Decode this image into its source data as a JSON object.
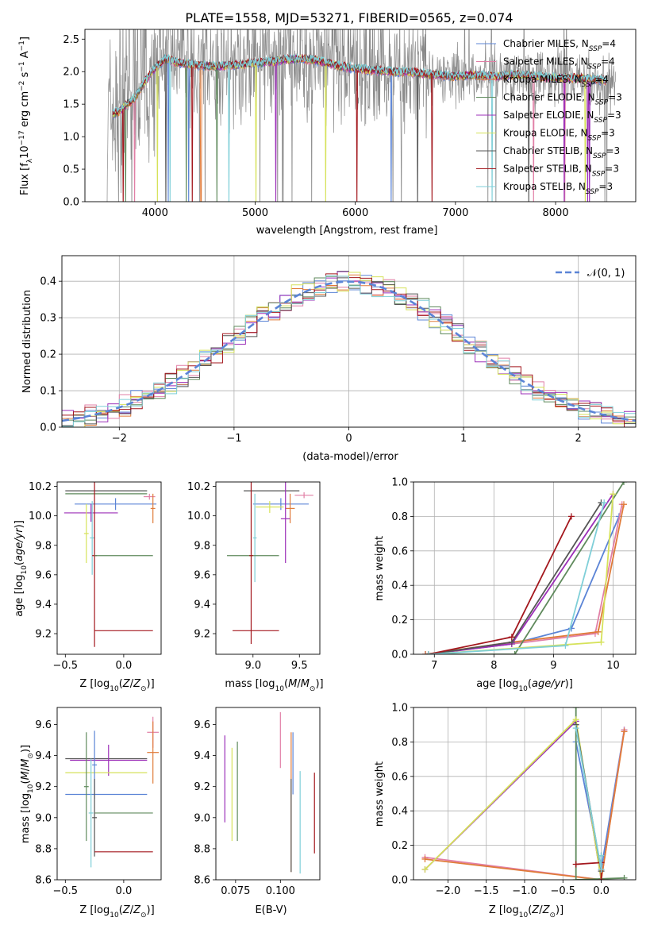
{
  "title": "PLATE=1558, MJD=53271, FIBERID=0565, z=0.074",
  "colors": {
    "chabrier_miles": "#5b84d6",
    "salpeter_miles": "#e17fa6",
    "kroupa_miles": "#e07b3a",
    "chabrier_elodie": "#5f8a5c",
    "salpeter_elodie": "#9c2fb8",
    "kroupa_elodie": "#d6e25a",
    "chabrier_stelib": "#555555",
    "salpeter_stelib": "#a3171d",
    "kroupa_stelib": "#7fcfd8",
    "gaussian": "#5b84d6",
    "grid": "#b0b0b0"
  },
  "chart_data": [
    {
      "id": "spectrum",
      "type": "line",
      "title": "PLATE=1558, MJD=53271, FIBERID=0565, z=0.074",
      "xlabel": "wavelength [Angstrom, rest frame]",
      "ylabel_parts": [
        "Flux [f",
        "λ",
        "10",
        "−17",
        " erg cm",
        "−2",
        " s",
        "−1",
        " A",
        "−1",
        "]"
      ],
      "xlim": [
        3300,
        8800
      ],
      "ylim": [
        0,
        2.65
      ],
      "xticks": [
        "4000",
        "5000",
        "6000",
        "7000",
        "8000"
      ],
      "yticks": [
        "0.0",
        "0.5",
        "1.0",
        "1.5",
        "2.0",
        "2.5"
      ],
      "grid": false,
      "legend_position": "top-right",
      "continuum_x": [
        3520,
        3650,
        3800,
        3900,
        4000,
        4100,
        4200,
        4400,
        4600,
        4800,
        5000,
        5200,
        5400,
        5600,
        5800,
        6000,
        6200,
        6400,
        6600,
        6800,
        7000,
        7200,
        7400,
        7600,
        7800,
        8000,
        8200,
        8400,
        8600
      ],
      "continuum_y": [
        1.3,
        1.4,
        1.6,
        1.85,
        2.05,
        2.2,
        2.15,
        2.1,
        2.08,
        2.1,
        2.13,
        2.16,
        2.2,
        2.18,
        2.1,
        2.05,
        2.02,
        2.0,
        1.98,
        1.95,
        1.93,
        1.95,
        1.93,
        1.95,
        1.93,
        1.9,
        1.9,
        1.88,
        1.85
      ],
      "legend": [
        {
          "name": "Chabrier MILES, ",
          "sub": "N",
          "subsc": "SSP",
          "suffix": "=4",
          "color": "#5b84d6"
        },
        {
          "name": "Salpeter MILES, ",
          "sub": "N",
          "subsc": "SSP",
          "suffix": "=4",
          "color": "#e17fa6"
        },
        {
          "name": "Kroupa MILES, ",
          "sub": "N",
          "subsc": "SSP",
          "suffix": "=4",
          "color": "#e07b3a"
        },
        {
          "name": "Chabrier ELODIE, ",
          "sub": "N",
          "subsc": "SSP",
          "suffix": "=3",
          "color": "#5f8a5c"
        },
        {
          "name": "Salpeter ELODIE, ",
          "sub": "N",
          "subsc": "SSP",
          "suffix": "=3",
          "color": "#9c2fb8"
        },
        {
          "name": "Kroupa ELODIE, ",
          "sub": "N",
          "subsc": "SSP",
          "suffix": "=3",
          "color": "#d6e25a"
        },
        {
          "name": "Chabrier STELIB, ",
          "sub": "N",
          "subsc": "SSP",
          "suffix": "=3",
          "color": "#555555"
        },
        {
          "name": "Salpeter STELIB, ",
          "sub": "N",
          "subsc": "SSP",
          "suffix": "=3",
          "color": "#a3171d"
        },
        {
          "name": "Kroupa STELIB, ",
          "sub": "N",
          "subsc": "SSP",
          "suffix": "=3",
          "color": "#7fcfd8"
        }
      ]
    },
    {
      "id": "residuals",
      "type": "histogram",
      "xlabel": "(data-model)/error",
      "ylabel": "Normed distribution",
      "xlim": [
        -2.5,
        2.5
      ],
      "ylim": [
        0,
        0.47
      ],
      "xticks": [
        "−2",
        "−1",
        "0",
        "1",
        "2"
      ],
      "yticks": [
        "0.0",
        "0.1",
        "0.2",
        "0.3",
        "0.4"
      ],
      "grid": true,
      "legend": [
        {
          "name": "N(0, 1)",
          "style": "dashed"
        }
      ],
      "bin_width": 0.1,
      "gaussian_mean": 0,
      "gaussian_sigma": 1
    },
    {
      "id": "age-vs-Z",
      "type": "errorbar",
      "xlabel": "Z [log10(Z/Z⊙)]",
      "ylabel": "age  [log10(age/yr)]",
      "xlim": [
        -0.57,
        0.32
      ],
      "ylim": [
        9.06,
        10.23
      ],
      "xticks": [
        -0.5,
        0.0
      ],
      "yticks": [
        9.2,
        9.4,
        9.6,
        9.8,
        10.0,
        10.2
      ],
      "points": [
        {
          "x": -0.15,
          "y": 10.17,
          "xerr": 0.35,
          "yerr": 0.0,
          "color": "#555555"
        },
        {
          "x": -0.15,
          "y": 10.15,
          "xerr": 0.35,
          "yerr": 0.0,
          "color": "#5f8a5c"
        },
        {
          "x": 0.22,
          "y": 10.13,
          "xerr": 0.05,
          "yerr": 0.02,
          "color": "#e17fa6"
        },
        {
          "x": -0.07,
          "y": 10.08,
          "xerr": 0.35,
          "yerr": 0.04,
          "color": "#5b84d6"
        },
        {
          "x": 0.25,
          "y": 10.05,
          "xerr": 0.02,
          "yerr": 0.1,
          "color": "#e07b3a"
        },
        {
          "x": -0.28,
          "y": 10.02,
          "xerr": 0.23,
          "yerr": 0.06,
          "color": "#9c2fb8"
        },
        {
          "x": -0.32,
          "y": 9.88,
          "xerr": 0.02,
          "yerr": 0.2,
          "color": "#d6e25a"
        },
        {
          "x": -0.27,
          "y": 9.85,
          "xerr": 0.02,
          "yerr": 0.25,
          "color": "#7fcfd8"
        },
        {
          "x": -0.25,
          "y": 9.73,
          "xerr": 0.02,
          "yerr": 0.62,
          "color": "#a3171d"
        },
        {
          "x": 0.0,
          "y": 9.73,
          "xerr": 0.25,
          "yerr": 0.0,
          "color": "#5f8a5c"
        },
        {
          "x": -0.0,
          "y": 9.22,
          "xerr": 0.25,
          "yerr": 0.0,
          "color": "#a3171d"
        }
      ]
    },
    {
      "id": "age-vs-mass",
      "type": "errorbar",
      "xlabel": "mass [log10(M/M⊙)]",
      "ylabel": "",
      "xlim": [
        8.6,
        9.72
      ],
      "ylim": [
        9.06,
        10.23
      ],
      "xticks": [
        9.0,
        9.5
      ],
      "yticks": [
        9.2,
        9.4,
        9.6,
        9.8,
        10.0,
        10.2
      ],
      "points": [
        {
          "x": 9.2,
          "y": 10.17,
          "xerr": 0.3,
          "yerr": 0.0,
          "color": "#555555"
        },
        {
          "x": 9.55,
          "y": 10.14,
          "xerr": 0.1,
          "yerr": 0.02,
          "color": "#e17fa6"
        },
        {
          "x": 9.3,
          "y": 10.08,
          "xerr": 0.3,
          "yerr": 0.04,
          "color": "#5b84d6"
        },
        {
          "x": 9.4,
          "y": 10.05,
          "xerr": 0.05,
          "yerr": 0.1,
          "color": "#e07b3a"
        },
        {
          "x": 9.18,
          "y": 10.06,
          "xerr": 0.15,
          "yerr": 0.04,
          "color": "#d6e25a"
        },
        {
          "x": 9.35,
          "y": 9.98,
          "xerr": 0.05,
          "yerr": 0.3,
          "color": "#9c2fb8"
        },
        {
          "x": 9.02,
          "y": 9.85,
          "xerr": 0.02,
          "yerr": 0.3,
          "color": "#7fcfd8"
        },
        {
          "x": 9.0,
          "y": 9.73,
          "xerr": 0.28,
          "yerr": 0.0,
          "color": "#5f8a5c"
        },
        {
          "x": 8.98,
          "y": 9.73,
          "xerr": 0.02,
          "yerr": 0.6,
          "color": "#a3171d"
        },
        {
          "x": 9.03,
          "y": 9.22,
          "xerr": 0.25,
          "yerr": 0.0,
          "color": "#a3171d"
        }
      ]
    },
    {
      "id": "weight-vs-age",
      "type": "line",
      "xlabel": "age  [log10(age/yr)]",
      "ylabel": "mass weight",
      "xlim": [
        6.65,
        10.38
      ],
      "ylim": [
        0,
        1.0
      ],
      "xticks": [
        7,
        8,
        9,
        10
      ],
      "yticks": [
        "0.0",
        "0.2",
        "0.4",
        "0.6",
        "0.8",
        "1.0"
      ],
      "grid": true,
      "series": [
        {
          "color": "#5b84d6",
          "x": [
            6.85,
            8.3,
            9.3,
            10.1
          ],
          "y": [
            0.0,
            0.06,
            0.15,
            0.8
          ]
        },
        {
          "color": "#e17fa6",
          "x": [
            6.85,
            8.3,
            9.7,
            10.15
          ],
          "y": [
            0.0,
            0.06,
            0.12,
            0.87
          ]
        },
        {
          "color": "#e07b3a",
          "x": [
            6.85,
            8.3,
            9.75,
            10.18
          ],
          "y": [
            0.0,
            0.07,
            0.13,
            0.87
          ]
        },
        {
          "color": "#5f8a5c",
          "x": [
            6.9,
            8.35,
            10.18
          ],
          "y": [
            0.0,
            0.0,
            1.0
          ]
        },
        {
          "color": "#9c2fb8",
          "x": [
            6.9,
            8.3,
            10.0
          ],
          "y": [
            0.0,
            0.06,
            0.93
          ]
        },
        {
          "color": "#d6e25a",
          "x": [
            6.9,
            9.8,
            10.0
          ],
          "y": [
            0.0,
            0.07,
            0.93
          ]
        },
        {
          "color": "#555555",
          "x": [
            6.9,
            8.3,
            9.8
          ],
          "y": [
            0.0,
            0.07,
            0.88
          ]
        },
        {
          "color": "#a3171d",
          "x": [
            6.9,
            8.3,
            9.3
          ],
          "y": [
            0.0,
            0.1,
            0.8
          ]
        },
        {
          "color": "#7fcfd8",
          "x": [
            6.9,
            9.2,
            9.85
          ],
          "y": [
            0.0,
            0.05,
            0.88
          ]
        }
      ]
    },
    {
      "id": "mass-vs-Z",
      "type": "errorbar",
      "xlabel": "Z [log10(Z/Z⊙)]",
      "ylabel": "mass [log10(M/M⊙)]",
      "xlim": [
        -0.57,
        0.32
      ],
      "ylim": [
        8.6,
        9.71
      ],
      "xticks": [
        -0.5,
        0.0
      ],
      "yticks": [
        8.6,
        8.8,
        9.0,
        9.2,
        9.4,
        9.6
      ],
      "points": [
        {
          "x": 0.25,
          "y": 9.55,
          "xerr": 0.05,
          "yerr": 0.1,
          "color": "#e17fa6"
        },
        {
          "x": 0.25,
          "y": 9.42,
          "xerr": 0.05,
          "yerr": 0.2,
          "color": "#e07b3a"
        },
        {
          "x": -0.15,
          "y": 9.38,
          "xerr": 0.35,
          "yerr": 0.0,
          "color": "#555555"
        },
        {
          "x": -0.13,
          "y": 9.37,
          "xerr": 0.33,
          "yerr": 0.1,
          "color": "#9c2fb8"
        },
        {
          "x": -0.15,
          "y": 9.29,
          "xerr": 0.35,
          "yerr": 0.0,
          "color": "#d6e25a"
        },
        {
          "x": -0.15,
          "y": 9.15,
          "xerr": 0.35,
          "yerr": 0.0,
          "color": "#5b84d6"
        },
        {
          "x": -0.25,
          "y": 9.34,
          "xerr": 0.02,
          "yerr": 0.22,
          "color": "#5b84d6"
        },
        {
          "x": -0.32,
          "y": 9.2,
          "xerr": 0.02,
          "yerr": 0.35,
          "color": "#5f8a5c"
        },
        {
          "x": 0.0,
          "y": 9.03,
          "xerr": 0.25,
          "yerr": 0.0,
          "color": "#5f8a5c"
        },
        {
          "x": -0.28,
          "y": 9.03,
          "xerr": 0.02,
          "yerr": 0.35,
          "color": "#7fcfd8"
        },
        {
          "x": -0.25,
          "y": 9.0,
          "xerr": 0.02,
          "yerr": 0.25,
          "color": "#555555"
        },
        {
          "x": 0.0,
          "y": 8.78,
          "xerr": 0.25,
          "yerr": 0.0,
          "color": "#a3171d"
        }
      ]
    },
    {
      "id": "mass-vs-ebv",
      "type": "errorbar",
      "xlabel": "E(B-V)",
      "ylabel": "",
      "xlim": [
        0.064,
        0.122
      ],
      "ylim": [
        8.6,
        9.71
      ],
      "xticks": [
        0.075,
        0.1
      ],
      "yticks": [
        8.6,
        8.8,
        9.0,
        9.2,
        9.4,
        9.6
      ],
      "points": [
        {
          "x": 0.069,
          "y": 9.25,
          "xerr": 0,
          "yerr": 0.28,
          "color": "#9c2fb8"
        },
        {
          "x": 0.073,
          "y": 9.15,
          "xerr": 0,
          "yerr": 0.3,
          "color": "#d6e25a"
        },
        {
          "x": 0.076,
          "y": 9.17,
          "xerr": 0,
          "yerr": 0.32,
          "color": "#5f8a5c"
        },
        {
          "x": 0.1,
          "y": 9.5,
          "xerr": 0,
          "yerr": 0.18,
          "color": "#e17fa6"
        },
        {
          "x": 0.107,
          "y": 9.35,
          "xerr": 0,
          "yerr": 0.2,
          "color": "#5b84d6"
        },
        {
          "x": 0.106,
          "y": 9.1,
          "xerr": 0,
          "yerr": 0.45,
          "color": "#e07b3a"
        },
        {
          "x": 0.106,
          "y": 8.95,
          "xerr": 0,
          "yerr": 0.3,
          "color": "#555555"
        },
        {
          "x": 0.111,
          "y": 8.97,
          "xerr": 0,
          "yerr": 0.33,
          "color": "#7fcfd8"
        },
        {
          "x": 0.119,
          "y": 9.03,
          "xerr": 0,
          "yerr": 0.26,
          "color": "#a3171d"
        }
      ]
    },
    {
      "id": "weight-vs-Z",
      "type": "line",
      "xlabel": "Z [log10(Z/Z⊙)]",
      "ylabel": "mass weight",
      "xlim": [
        -2.45,
        0.45
      ],
      "ylim": [
        0,
        1.0
      ],
      "xticks": [
        -2.0,
        -1.5,
        -1.0,
        -0.5,
        0.0
      ],
      "yticks": [
        "0.0",
        "0.2",
        "0.4",
        "0.6",
        "0.8",
        "1.0"
      ],
      "grid": true,
      "series": [
        {
          "color": "#5b84d6",
          "x": [
            -0.33,
            -0.0,
            0.3
          ],
          "y": [
            0.8,
            0.06,
            0.87
          ]
        },
        {
          "color": "#e17fa6",
          "x": [
            -2.3,
            -0.0,
            0.3
          ],
          "y": [
            0.13,
            0.0,
            0.87
          ]
        },
        {
          "color": "#e07b3a",
          "x": [
            -2.3,
            -0.0,
            0.3
          ],
          "y": [
            0.12,
            0.0,
            0.86
          ]
        },
        {
          "color": "#5f8a5c",
          "x": [
            -0.33,
            -0.33,
            0.3
          ],
          "y": [
            1.0,
            0.0,
            0.01
          ]
        },
        {
          "color": "#9c2fb8",
          "x": [
            -2.3,
            -0.33,
            -0.0
          ],
          "y": [
            0.06,
            0.92,
            0.0
          ]
        },
        {
          "color": "#d6e25a",
          "x": [
            -2.3,
            -0.33,
            -0.0
          ],
          "y": [
            0.06,
            0.93,
            0.0
          ]
        },
        {
          "color": "#555555",
          "x": [
            -0.33,
            -0.0,
            -0.0
          ],
          "y": [
            0.9,
            0.05,
            0.14
          ]
        },
        {
          "color": "#a3171d",
          "x": [
            -0.33,
            -0.0,
            -0.0
          ],
          "y": [
            0.09,
            0.1,
            0.0
          ]
        },
        {
          "color": "#7fcfd8",
          "x": [
            -0.33,
            -0.0,
            -0.0
          ],
          "y": [
            0.88,
            0.06,
            0.14
          ]
        }
      ]
    }
  ]
}
